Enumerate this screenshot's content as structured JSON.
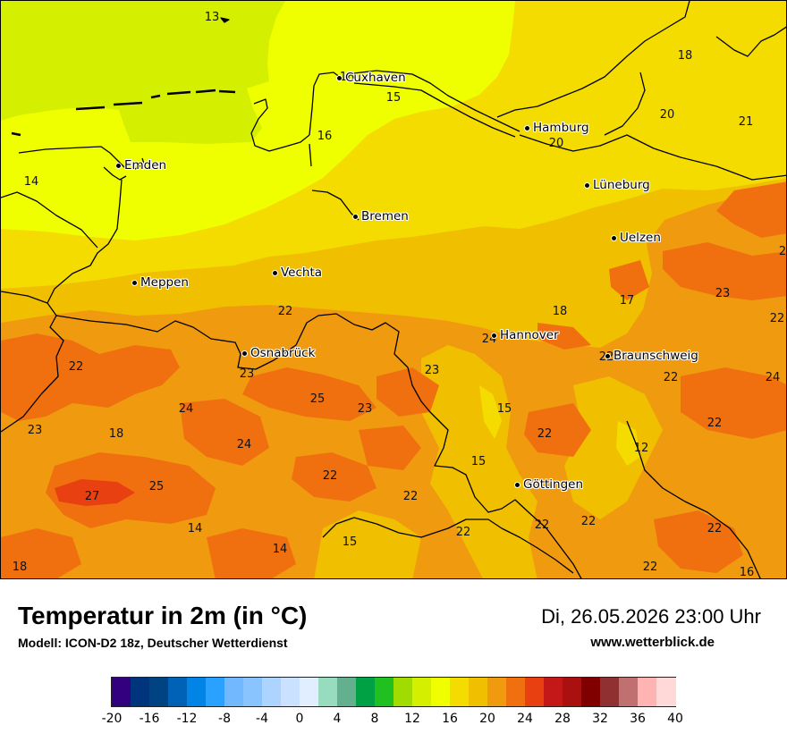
{
  "map": {
    "cities": [
      {
        "name": "Cuxhaven"
      },
      {
        "name": "Hamburg"
      },
      {
        "name": "Emden"
      },
      {
        "name": "Lüneburg"
      },
      {
        "name": "Bremen"
      },
      {
        "name": "Uelzen"
      },
      {
        "name": "Vechta"
      },
      {
        "name": "Meppen"
      },
      {
        "name": "Hannover"
      },
      {
        "name": "Osnabrück"
      },
      {
        "name": "Braunschweig"
      },
      {
        "name": "Göttingen"
      }
    ],
    "values": [
      "13",
      "18",
      "16",
      "15",
      "20",
      "21",
      "16",
      "20",
      "14",
      "2",
      "23",
      "17",
      "18",
      "22",
      "22",
      "24",
      "22",
      "22",
      "23",
      "23",
      "22",
      "24",
      "25",
      "24",
      "23",
      "15",
      "22",
      "23",
      "18",
      "22",
      "24",
      "12",
      "15",
      "22",
      "25",
      "27",
      "22",
      "22",
      "22",
      "14",
      "22",
      "22",
      "15",
      "14",
      "22",
      "18",
      "16"
    ],
    "field_colors": {
      "c14": "#d4f000",
      "c16": "#f0ff00",
      "c18": "#f4dc00",
      "c20": "#f0c000",
      "c22": "#f09a10",
      "c24": "#f07010",
      "c26": "#e84010"
    }
  },
  "footer": {
    "title": "Temperatur in 2m (in °C)",
    "model": "Modell: ICON-D2 18z, Deutscher Wetterdienst",
    "datetime": "Di, 26.05.2026 23:00 Uhr",
    "website": "www.wetterblick.de"
  },
  "colorbar": {
    "colors": [
      "#330080",
      "#00347c",
      "#004382",
      "#0062b6",
      "#0084e6",
      "#2aa0ff",
      "#72b8ff",
      "#8ac4ff",
      "#acd4ff",
      "#cae2ff",
      "#e0eeff",
      "#98dcc0",
      "#62b08e",
      "#00a044",
      "#20c020",
      "#a0dc00",
      "#d4f000",
      "#f0ff00",
      "#f4dc00",
      "#f0c000",
      "#f09a10",
      "#f07010",
      "#e84010",
      "#c41818",
      "#aa1010",
      "#800000",
      "#903030",
      "#c07070",
      "#ffb4b4",
      "#ffd8d8"
    ],
    "ticks": [
      "-20",
      "-16",
      "-12",
      "-8",
      "-4",
      "0",
      "4",
      "8",
      "12",
      "16",
      "20",
      "24",
      "28",
      "32",
      "36",
      "40"
    ]
  }
}
